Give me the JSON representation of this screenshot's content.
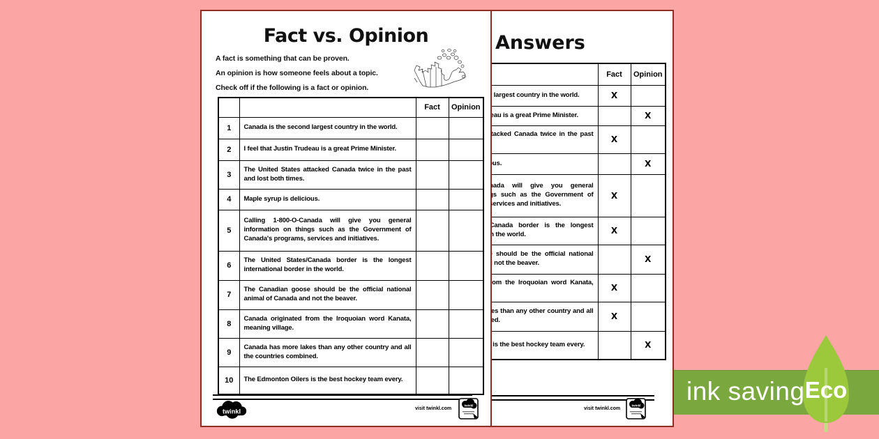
{
  "colors": {
    "background": "#fba6a4",
    "page_border": "#8f2e24",
    "banner_green": "#7aa83f",
    "leaf_green": "#9cc83c",
    "leaf_stem": "#c3dc85",
    "ink": "#000000"
  },
  "worksheet": {
    "title": "Fact vs. Opinion",
    "instructions": [
      "A fact is something that can be proven.",
      "An opinion is how someone feels about a topic.",
      "Check off if the following is a fact or opinion."
    ],
    "table_headers": {
      "fact": "Fact",
      "opinion": "Opinion"
    },
    "statements": [
      {
        "num": "1",
        "text": "Canada is the second largest country in the world.",
        "answer": "fact"
      },
      {
        "num": "2",
        "text": "I feel that Justin Trudeau is a great Prime Minister.",
        "answer": "opinion"
      },
      {
        "num": "3",
        "text": "The United States attacked Canada twice in the past and lost both times.",
        "answer": "fact"
      },
      {
        "num": "4",
        "text": "Maple syrup is delicious.",
        "answer": "opinion"
      },
      {
        "num": "5",
        "text": "Calling 1-800-O-Canada will give you general information on things such as the Government of Canada's programs, services and initiatives.",
        "answer": "fact"
      },
      {
        "num": "6",
        "text": "The United States/Canada border is the longest international border in the world.",
        "answer": "fact"
      },
      {
        "num": "7",
        "text": "The Canadian goose should be the official national animal of Canada and not the beaver.",
        "answer": "opinion"
      },
      {
        "num": "8",
        "text": "Canada originated from the Iroquoian word Kanata, meaning village.",
        "answer": "fact"
      },
      {
        "num": "9",
        "text": "Canada has more lakes than any other country and all the countries combined.",
        "answer": "fact"
      },
      {
        "num": "10",
        "text": "The Edmonton Oilers is the best hockey team every.",
        "answer": "opinion"
      }
    ],
    "answer_mark": "X",
    "footer": {
      "logo": "twinkl",
      "visit": "visit twinkl.com"
    }
  },
  "answers_sheet": {
    "title": "Answers"
  },
  "eco_banner": {
    "label": "ink saving",
    "badge": "Eco"
  }
}
